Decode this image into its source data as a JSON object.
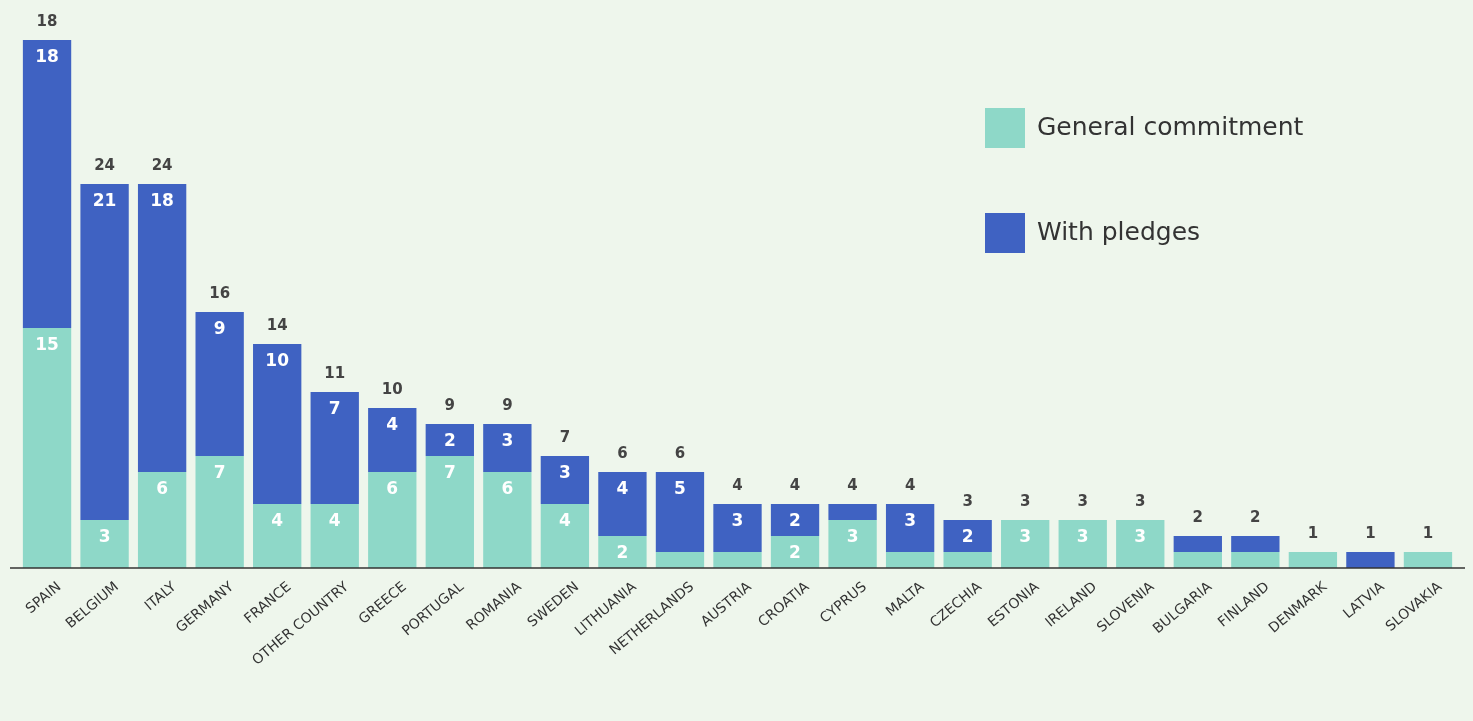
{
  "chart_data": {
    "type": "bar",
    "stacked": true,
    "legend": "top right",
    "categories": [
      "SPAIN",
      "BELGIUM",
      "ITALY",
      "GERMANY",
      "FRANCE",
      "OTHER COUNTRY",
      "GREECE",
      "PORTUGAL",
      "ROMANIA",
      "SWEDEN",
      "LITHUANIA",
      "NETHERLANDS",
      "AUSTRIA",
      "CROATIA",
      "CYPRUS",
      "MALTA",
      "CZECHIA",
      "ESTONIA",
      "IRELAND",
      "SLOVENIA",
      "BULGARIA",
      "FINLAND",
      "DENMARK",
      "LATVIA",
      "SLOVAKIA"
    ],
    "series": [
      {
        "name": "General commitment",
        "color": "#8ed8c8",
        "values": [
          15,
          3,
          6,
          7,
          4,
          4,
          6,
          7,
          6,
          4,
          2,
          1,
          1,
          2,
          3,
          1,
          1,
          3,
          3,
          3,
          1,
          1,
          1,
          0,
          1
        ],
        "value_labels": [
          "15",
          "3",
          "6",
          "7",
          "4",
          "4",
          "6",
          "7",
          "6",
          "4",
          "2",
          null,
          null,
          "2",
          "3",
          null,
          null,
          "3",
          "3",
          "3",
          null,
          null,
          null,
          null,
          null
        ]
      },
      {
        "name": "With pledges",
        "color": "#3f62c2",
        "values": [
          18,
          21,
          18,
          9,
          10,
          7,
          4,
          2,
          3,
          3,
          4,
          5,
          3,
          2,
          1,
          3,
          2,
          0,
          0,
          0,
          1,
          1,
          0,
          1,
          0
        ],
        "value_labels": [
          "18",
          "21",
          "18",
          "9",
          "10",
          "7",
          "4",
          "2",
          "3",
          "3",
          "4",
          "5",
          "3",
          "2",
          null,
          "3",
          "2",
          null,
          null,
          null,
          null,
          null,
          null,
          null,
          null
        ]
      }
    ],
    "annotations": [
      {
        "text": "18",
        "x": "SPAIN",
        "y": 33
      },
      {
        "text": "24",
        "x": "BELGIUM",
        "y": 24
      },
      {
        "text": "24",
        "x": "ITALY",
        "y": 24
      },
      {
        "text": "16",
        "x": "GERMANY",
        "y": 16
      },
      {
        "text": "14",
        "x": "FRANCE",
        "y": 14
      },
      {
        "text": "11",
        "x": "OTHER COUNTRY",
        "y": 11
      },
      {
        "text": "10",
        "x": "GREECE",
        "y": 10
      },
      {
        "text": "9",
        "x": "PORTUGAL",
        "y": 9
      },
      {
        "text": "9",
        "x": "ROMANIA",
        "y": 9
      },
      {
        "text": "7",
        "x": "SWEDEN",
        "y": 7
      },
      {
        "text": "6",
        "x": "LITHUANIA",
        "y": 6
      },
      {
        "text": "6",
        "x": "NETHERLANDS",
        "y": 6
      },
      {
        "text": "4",
        "x": "AUSTRIA",
        "y": 4
      },
      {
        "text": "4",
        "x": "CROATIA",
        "y": 4
      },
      {
        "text": "4",
        "x": "CYPRUS",
        "y": 4
      },
      {
        "text": "4",
        "x": "MALTA",
        "y": 4
      },
      {
        "text": "3",
        "x": "CZECHIA",
        "y": 3
      },
      {
        "text": "3",
        "x": "ESTONIA",
        "y": 3
      },
      {
        "text": "3",
        "x": "IRELAND",
        "y": 3
      },
      {
        "text": "3",
        "x": "SLOVENIA",
        "y": 3
      },
      {
        "text": "2",
        "x": "BULGARIA",
        "y": 2
      },
      {
        "text": "2",
        "x": "FINLAND",
        "y": 2
      },
      {
        "text": "1",
        "x": "DENMARK",
        "y": 1
      },
      {
        "text": "1",
        "x": "LATVIA",
        "y": 1
      },
      {
        "text": "1",
        "x": "SLOVAKIA",
        "y": 1
      }
    ]
  }
}
